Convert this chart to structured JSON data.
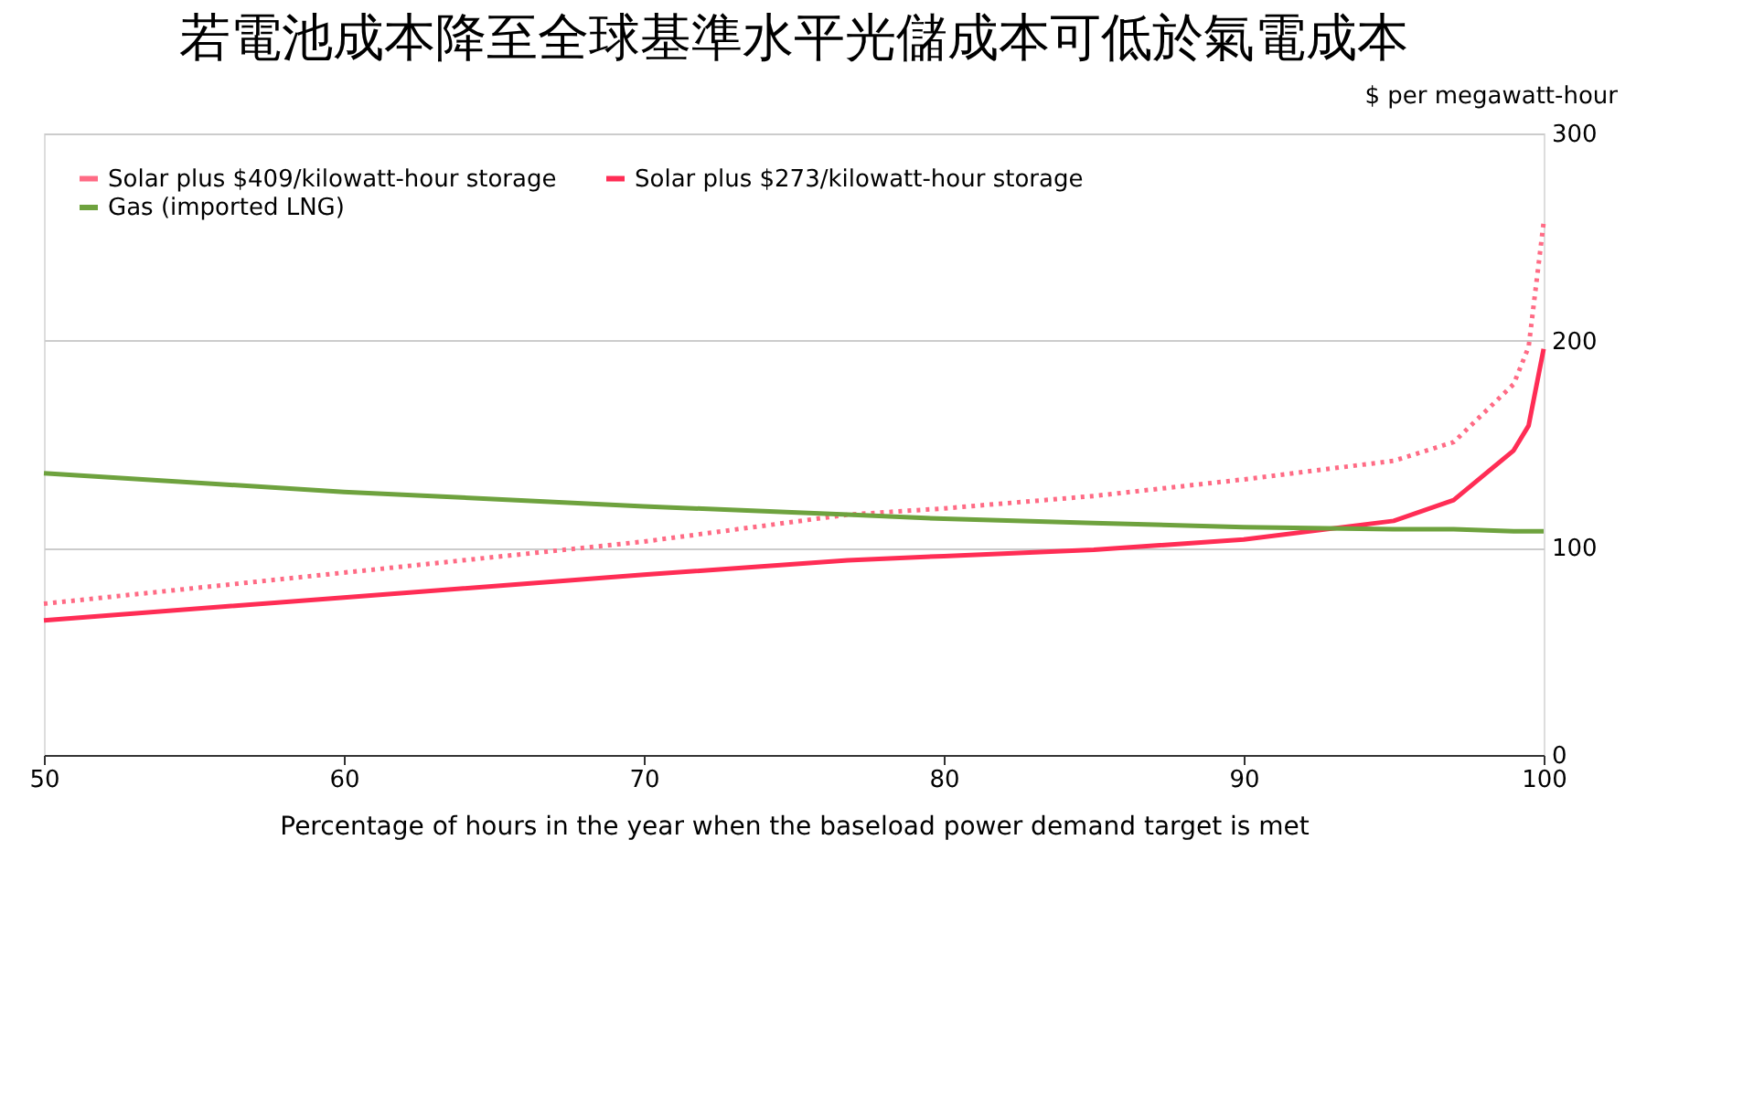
{
  "chart_data": {
    "type": "line",
    "title": "若電池成本降至全球基準水平光儲成本可低於氣電成本",
    "xlabel": "Percentage of hours in the year when the baseload power demand target is met",
    "ylabel": "$ per megawatt-hour",
    "xlim": [
      50,
      100
    ],
    "xticks": [
      50,
      60,
      70,
      80,
      90,
      100
    ],
    "ylim": [
      0,
      300
    ],
    "yticks": [
      0,
      100,
      200,
      300
    ],
    "grid": "y",
    "legend": "top left",
    "marker": "none",
    "series": [
      {
        "name": "Solar plus $409/kilowatt-hour storage",
        "color": "#ff6b85",
        "line_style": "dotted",
        "x": [
          50,
          60,
          70,
          76.8,
          80,
          85,
          90,
          95,
          97,
          99,
          99.5,
          100
        ],
        "values": [
          73,
          88,
          103,
          116,
          119,
          125,
          133,
          142,
          151,
          179,
          197,
          257
        ]
      },
      {
        "name": "Solar plus $273/kilowatt-hour storage",
        "color": "#ff2d55",
        "line_style": "solid",
        "x": [
          50,
          60,
          70,
          76.8,
          80,
          85,
          90,
          95,
          97,
          99,
          99.5,
          100
        ],
        "values": [
          65,
          76,
          87,
          94,
          96,
          99,
          104,
          113,
          123,
          147,
          159,
          196
        ]
      },
      {
        "name": "Gas (imported LNG)",
        "color": "#6ea23e",
        "line_style": "solid",
        "x": [
          50,
          60,
          70,
          76.8,
          80,
          85,
          90,
          95,
          97,
          99,
          100
        ],
        "values": [
          136,
          127,
          120,
          116,
          114,
          112,
          110,
          109,
          109,
          108,
          108
        ]
      }
    ]
  }
}
